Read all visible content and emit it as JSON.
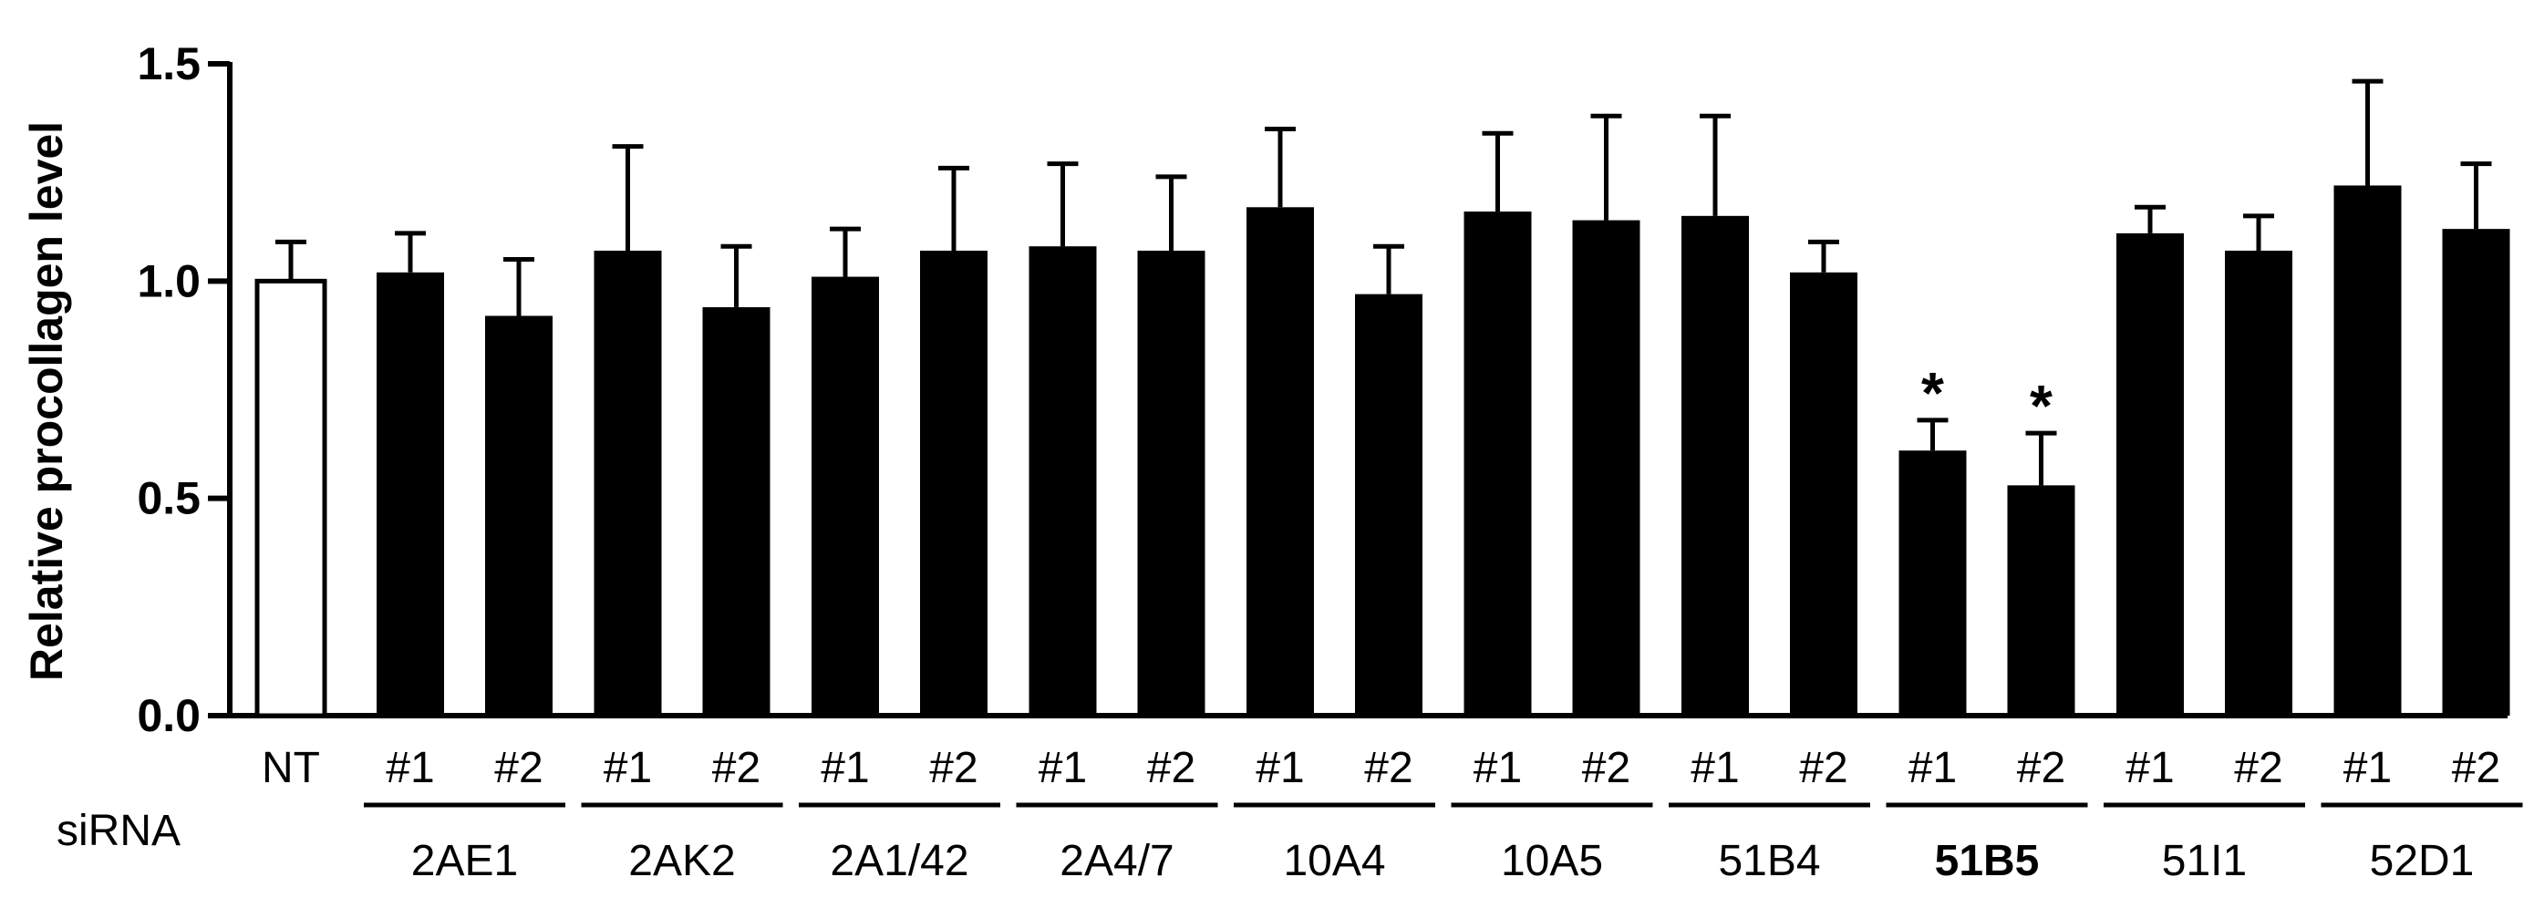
{
  "chart_data": {
    "type": "bar",
    "ylabel": "Relative procollagen level",
    "ylim": [
      0,
      1.5
    ],
    "yticks": [
      0.0,
      0.5,
      1.0,
      1.5
    ],
    "ytick_labels": [
      "0.0",
      "0.5",
      "1.0",
      "1.5"
    ],
    "row_label": "siRNA",
    "bars": [
      {
        "label": "NT",
        "group": "",
        "value": 1.0,
        "error": 0.09,
        "fill": "white",
        "sig": ""
      },
      {
        "label": "#1",
        "group": "2AE1",
        "value": 1.02,
        "error": 0.09,
        "fill": "black",
        "sig": ""
      },
      {
        "label": "#2",
        "group": "2AE1",
        "value": 0.92,
        "error": 0.13,
        "fill": "black",
        "sig": ""
      },
      {
        "label": "#1",
        "group": "2AK2",
        "value": 1.07,
        "error": 0.24,
        "fill": "black",
        "sig": ""
      },
      {
        "label": "#2",
        "group": "2AK2",
        "value": 0.94,
        "error": 0.14,
        "fill": "black",
        "sig": ""
      },
      {
        "label": "#1",
        "group": "2A1/42",
        "value": 1.01,
        "error": 0.11,
        "fill": "black",
        "sig": ""
      },
      {
        "label": "#2",
        "group": "2A1/42",
        "value": 1.07,
        "error": 0.19,
        "fill": "black",
        "sig": ""
      },
      {
        "label": "#1",
        "group": "2A4/7",
        "value": 1.08,
        "error": 0.19,
        "fill": "black",
        "sig": ""
      },
      {
        "label": "#2",
        "group": "2A4/7",
        "value": 1.07,
        "error": 0.17,
        "fill": "black",
        "sig": ""
      },
      {
        "label": "#1",
        "group": "10A4",
        "value": 1.17,
        "error": 0.18,
        "fill": "black",
        "sig": ""
      },
      {
        "label": "#2",
        "group": "10A4",
        "value": 0.97,
        "error": 0.11,
        "fill": "black",
        "sig": ""
      },
      {
        "label": "#1",
        "group": "10A5",
        "value": 1.16,
        "error": 0.18,
        "fill": "black",
        "sig": ""
      },
      {
        "label": "#2",
        "group": "10A5",
        "value": 1.14,
        "error": 0.24,
        "fill": "black",
        "sig": ""
      },
      {
        "label": "#1",
        "group": "51B4",
        "value": 1.15,
        "error": 0.23,
        "fill": "black",
        "sig": ""
      },
      {
        "label": "#2",
        "group": "51B4",
        "value": 1.02,
        "error": 0.07,
        "fill": "black",
        "sig": ""
      },
      {
        "label": "#1",
        "group": "51B5",
        "value": 0.61,
        "error": 0.07,
        "fill": "black",
        "sig": "*"
      },
      {
        "label": "#2",
        "group": "51B5",
        "value": 0.53,
        "error": 0.12,
        "fill": "black",
        "sig": "*"
      },
      {
        "label": "#1",
        "group": "51I1",
        "value": 1.11,
        "error": 0.06,
        "fill": "black",
        "sig": ""
      },
      {
        "label": "#2",
        "group": "51I1",
        "value": 1.07,
        "error": 0.08,
        "fill": "black",
        "sig": ""
      },
      {
        "label": "#1",
        "group": "52D1",
        "value": 1.22,
        "error": 0.24,
        "fill": "black",
        "sig": ""
      },
      {
        "label": "#2",
        "group": "52D1",
        "value": 1.12,
        "error": 0.15,
        "fill": "black",
        "sig": ""
      }
    ],
    "groups": [
      {
        "name": "2AE1",
        "bold": false
      },
      {
        "name": "2AK2",
        "bold": false
      },
      {
        "name": "2A1/42",
        "bold": false
      },
      {
        "name": "2A4/7",
        "bold": false
      },
      {
        "name": "10A4",
        "bold": false
      },
      {
        "name": "10A5",
        "bold": false
      },
      {
        "name": "51B4",
        "bold": false
      },
      {
        "name": "51B5",
        "bold": true
      },
      {
        "name": "51I1",
        "bold": false
      },
      {
        "name": "52D1",
        "bold": false
      }
    ]
  }
}
